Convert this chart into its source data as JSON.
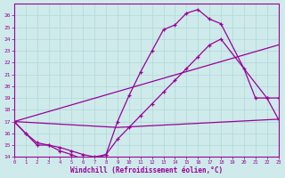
{
  "xlabel": "Windchill (Refroidissement éolien,°C)",
  "xlim": [
    0,
    23
  ],
  "ylim": [
    14,
    27
  ],
  "yticks": [
    14,
    15,
    16,
    17,
    18,
    19,
    20,
    21,
    22,
    23,
    24,
    25,
    26
  ],
  "xticks": [
    0,
    1,
    2,
    3,
    4,
    5,
    6,
    7,
    8,
    9,
    10,
    11,
    12,
    13,
    14,
    15,
    16,
    17,
    18,
    19,
    20,
    21,
    22,
    23
  ],
  "bg_color": "#ceeaea",
  "line_color": "#990099",
  "grid_color": "#b0d8d8",
  "curve1_x": [
    0,
    1,
    2,
    3,
    4,
    5,
    6,
    7,
    8,
    9,
    10,
    11,
    12,
    13,
    14,
    15,
    16,
    17,
    18,
    20,
    21,
    22,
    23
  ],
  "curve1_y": [
    17,
    16,
    15,
    15,
    14.5,
    14.2,
    13.8,
    13.8,
    14.2,
    17,
    19.2,
    21.2,
    23,
    24.8,
    25.2,
    26.2,
    26.5,
    25.7,
    25.3,
    21.5,
    19,
    19,
    19
  ],
  "curve2_x": [
    0,
    1,
    2,
    3,
    4,
    5,
    6,
    7,
    8,
    9,
    10,
    11,
    12,
    13,
    14,
    15,
    16,
    17,
    18,
    22,
    23
  ],
  "curve2_y": [
    17,
    16,
    15.2,
    15.0,
    14.8,
    14.5,
    14.2,
    14.0,
    14.2,
    15.5,
    16.5,
    17.5,
    18.5,
    19.5,
    20.5,
    21.5,
    22.5,
    23.5,
    24.0,
    19.0,
    17.2
  ],
  "line3_x": [
    0,
    23
  ],
  "line3_y": [
    17,
    23.5
  ],
  "line4_x": [
    0,
    9,
    23
  ],
  "line4_y": [
    17,
    16.5,
    17.2
  ]
}
